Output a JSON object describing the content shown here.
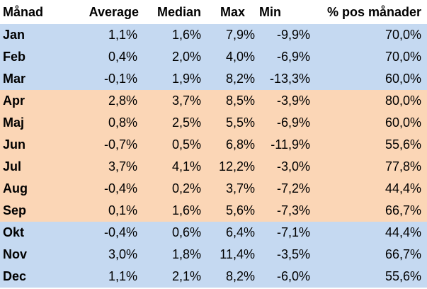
{
  "table": {
    "headers": [
      "Månad",
      "Average",
      "Median",
      "Max",
      "Min",
      "% pos månader"
    ],
    "colors": {
      "winter": "#c5d9f1",
      "summer": "#fbd6b6",
      "header": "#ffffff"
    },
    "rows": [
      {
        "season": "winter",
        "cells": [
          "Jan",
          "1,1%",
          "1,6%",
          "7,9%",
          "-9,9%",
          "70,0%"
        ]
      },
      {
        "season": "winter",
        "cells": [
          "Feb",
          "0,4%",
          "2,0%",
          "4,0%",
          "-6,9%",
          "70,0%"
        ]
      },
      {
        "season": "winter",
        "cells": [
          "Mar",
          "-0,1%",
          "1,9%",
          "8,2%",
          "-13,3%",
          "60,0%"
        ]
      },
      {
        "season": "summer",
        "cells": [
          "Apr",
          "2,8%",
          "3,7%",
          "8,5%",
          "-3,9%",
          "80,0%"
        ]
      },
      {
        "season": "summer",
        "cells": [
          "Maj",
          "0,8%",
          "2,5%",
          "5,5%",
          "-6,9%",
          "60,0%"
        ]
      },
      {
        "season": "summer",
        "cells": [
          "Jun",
          "-0,7%",
          "0,5%",
          "6,8%",
          "-11,9%",
          "55,6%"
        ]
      },
      {
        "season": "summer",
        "cells": [
          "Jul",
          "3,7%",
          "4,1%",
          "12,2%",
          "-3,0%",
          "77,8%"
        ]
      },
      {
        "season": "summer",
        "cells": [
          "Aug",
          "-0,4%",
          "0,2%",
          "3,7%",
          "-7,2%",
          "44,4%"
        ]
      },
      {
        "season": "summer",
        "cells": [
          "Sep",
          "0,1%",
          "1,6%",
          "5,6%",
          "-7,3%",
          "66,7%"
        ]
      },
      {
        "season": "winter",
        "cells": [
          "Okt",
          "-0,4%",
          "0,6%",
          "6,4%",
          "-7,1%",
          "44,4%"
        ]
      },
      {
        "season": "winter",
        "cells": [
          "Nov",
          "3,0%",
          "1,8%",
          "11,4%",
          "-3,5%",
          "66,7%"
        ]
      },
      {
        "season": "winter",
        "cells": [
          "Dec",
          "1,1%",
          "2,1%",
          "8,2%",
          "-6,0%",
          "55,6%"
        ]
      }
    ]
  }
}
